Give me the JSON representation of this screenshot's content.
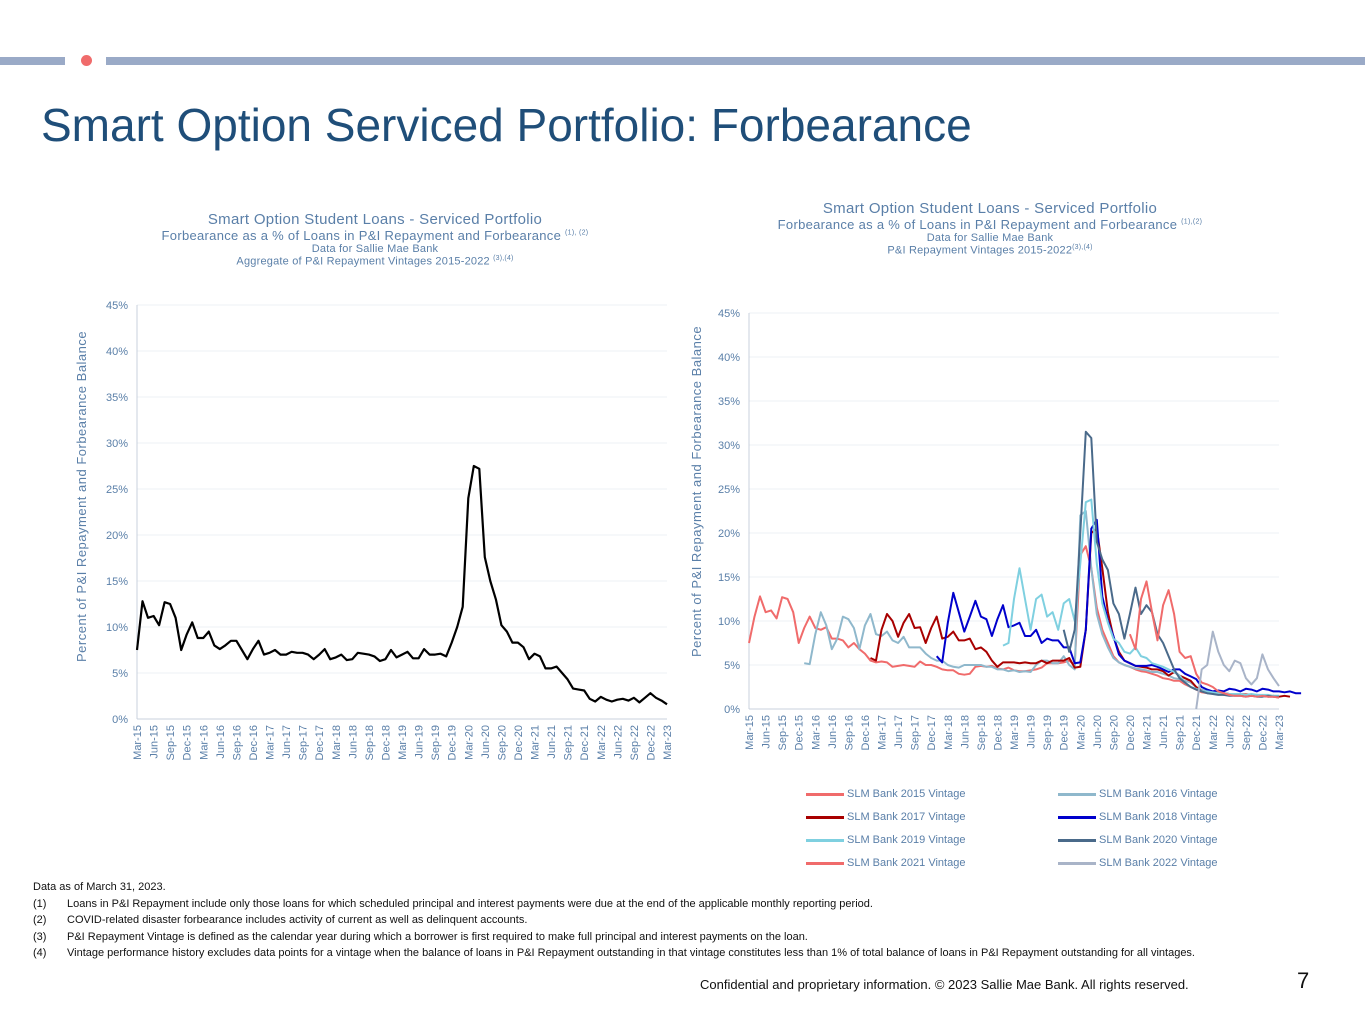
{
  "page": {
    "title": "Smart Option Serviced Portfolio: Forbearance",
    "footer": "Confidential and proprietary information. © 2023 Sallie Mae Bank. All rights reserved.",
    "page_number": "7",
    "notes_intro": "Data as of March 31, 2023.",
    "notes": [
      {
        "num": "(1)",
        "text": "Loans in P&I Repayment include only those loans for which scheduled principal and interest payments were due at the end of the applicable monthly reporting period."
      },
      {
        "num": "(2)",
        "text": "COVID-related disaster forbearance includes activity of current as well as delinquent accounts."
      },
      {
        "num": "(3)",
        "text": "P&I Repayment Vintage is defined as the calendar year during which a borrower is first required to make full principal and interest payments on the loan."
      },
      {
        "num": "(4)",
        "text": "Vintage performance history excludes data points for a vintage when the balance of loans in P&I Repayment outstanding in that vintage constitutes less than 1% of total balance of loans in P&I Repayment outstanding for all vintages."
      }
    ],
    "accent_color": "#f06b6b",
    "bar_color": "#9aaac7",
    "title_color": "#1f4e79"
  },
  "chart_data": [
    {
      "type": "line",
      "title": "Smart Option Student Loans - Serviced Portfolio",
      "subtitle": "Forbearance as a % of Loans in P&I Repayment and Forbearance",
      "subtitle_sup": "(1), (2)",
      "subtitle2": "Data for Sallie Mae Bank",
      "subtitle3": "Aggregate of P&I Repayment Vintages 2015-2022",
      "subtitle3_sup": "(3),(4)",
      "ylabel": "Percent of P&I Repayment and Forbearance  Balance",
      "xlabel": "",
      "ylim": [
        0,
        45
      ],
      "yticks": [
        "0%",
        "5%",
        "10%",
        "15%",
        "20%",
        "25%",
        "30%",
        "35%",
        "40%",
        "45%"
      ],
      "x_start": "2015-03",
      "x_end": "2023-03",
      "xtick_labels": [
        "Mar-15",
        "Jun-15",
        "Sep-15",
        "Dec-15",
        "Mar-16",
        "Jun-16",
        "Sep-16",
        "Dec-16",
        "Mar-17",
        "Jun-17",
        "Sep-17",
        "Dec-17",
        "Mar-18",
        "Jun-18",
        "Sep-18",
        "Dec-18",
        "Mar-19",
        "Jun-19",
        "Sep-19",
        "Dec-19",
        "Mar-20",
        "Jun-20",
        "Sep-20",
        "Dec-20",
        "Mar-21",
        "Jun-21",
        "Sep-21",
        "Dec-21",
        "Mar-22",
        "Jun-22",
        "Sep-22",
        "Dec-22",
        "Mar-23"
      ],
      "grid": true,
      "series": [
        {
          "color": "#000000",
          "values": [
            7.5,
            12.8,
            11.0,
            11.2,
            10.2,
            12.7,
            12.5,
            11.0,
            7.5,
            9.2,
            10.5,
            8.8,
            8.8,
            9.5,
            8.0,
            7.6,
            8.0,
            8.5,
            8.5,
            7.5,
            6.5,
            7.6,
            8.5,
            7.0,
            7.2,
            7.5,
            7.0,
            7.0,
            7.3,
            7.2,
            7.2,
            7.0,
            6.5,
            7.0,
            7.6,
            6.5,
            6.7,
            7.0,
            6.4,
            6.5,
            7.2,
            7.1,
            7.0,
            6.8,
            6.3,
            6.5,
            7.5,
            6.7,
            7.0,
            7.3,
            6.6,
            6.6,
            7.6,
            7.0,
            7.0,
            7.1,
            6.8,
            8.3,
            10.0,
            12.2,
            24.0,
            27.5,
            27.2,
            17.6,
            15.0,
            13.0,
            10.2,
            9.5,
            8.3,
            8.3,
            7.8,
            6.5,
            7.1,
            6.8,
            5.5,
            5.5,
            5.7,
            5.0,
            4.3,
            3.3,
            3.2,
            3.1,
            2.2,
            1.9,
            2.4,
            2.1,
            1.9,
            2.1,
            2.2,
            2.0,
            2.3,
            1.8,
            2.3,
            2.8,
            2.3,
            2.0,
            1.6
          ]
        }
      ]
    },
    {
      "type": "line",
      "title": "Smart Option Student Loans - Serviced Portfolio",
      "subtitle": "Forbearance as a % of Loans in P&I Repayment and Forbearance",
      "subtitle_sup": "(1),(2)",
      "subtitle2": "Data for Sallie Mae Bank",
      "subtitle3": "P&I Repayment Vintages 2015-2022",
      "subtitle3_sup": "(3),(4)",
      "ylabel": "Percent of P&I Repayment and Forbearance  Balance",
      "xlabel": "",
      "ylim": [
        0,
        45
      ],
      "yticks": [
        "0%",
        "5%",
        "10%",
        "15%",
        "20%",
        "25%",
        "30%",
        "35%",
        "40%",
        "45%"
      ],
      "x_start": "2015-03",
      "x_end": "2023-03",
      "xtick_labels": [
        "Mar-15",
        "Jun-15",
        "Sep-15",
        "Dec-15",
        "Mar-16",
        "Jun-16",
        "Sep-16",
        "Dec-16",
        "Mar-17",
        "Jun-17",
        "Sep-17",
        "Dec-17",
        "Mar-18",
        "Jun-18",
        "Sep-18",
        "Dec-18",
        "Mar-19",
        "Jun-19",
        "Sep-19",
        "Dec-19",
        "Mar-20",
        "Jun-20",
        "Sep-20",
        "Dec-20",
        "Mar-21",
        "Jun-21",
        "Sep-21",
        "Dec-21",
        "Mar-22",
        "Jun-22",
        "Sep-22",
        "Dec-22",
        "Mar-23"
      ],
      "grid": true,
      "legend_position": "bottom",
      "series": [
        {
          "name": "SLM Bank 2015 Vintage",
          "color": "#f06b6b",
          "start": "2015-03",
          "values": [
            7.5,
            10.5,
            12.8,
            11.0,
            11.2,
            10.3,
            12.7,
            12.5,
            11.0,
            7.5,
            9.2,
            10.5,
            9.2,
            9.0,
            9.3,
            8.0,
            8.0,
            7.8,
            7.0,
            7.5,
            6.8,
            6.3,
            5.5,
            5.3,
            5.4,
            5.3,
            4.8,
            4.9,
            5.0,
            4.9,
            4.8,
            5.4,
            5.0,
            5.0,
            4.8,
            4.5,
            4.4,
            4.4,
            4.0,
            3.9,
            4.0,
            4.8,
            4.9,
            4.8,
            4.9,
            4.6,
            4.5,
            4.7,
            4.4,
            4.3,
            4.3,
            4.4,
            4.5,
            4.7,
            5.2,
            5.2,
            5.2,
            5.3,
            5.5,
            5.0,
            17.5,
            18.5,
            16.0,
            11.5,
            9.0,
            7.5,
            6.0,
            5.3,
            5.0,
            4.8,
            4.5,
            4.3,
            4.2,
            4.0,
            3.8,
            3.5,
            3.4,
            3.2,
            3.2,
            2.8,
            2.5,
            2.2,
            1.9,
            1.8,
            1.9,
            1.8,
            1.6,
            1.7,
            1.6,
            1.7,
            1.7,
            1.6,
            1.5,
            1.5,
            1.5,
            1.4,
            1.3
          ]
        },
        {
          "name": "SLM Bank 2016 Vintage",
          "color": "#8fb8cc",
          "start": "2016-01",
          "values": [
            5.2,
            5.1,
            8.5,
            11.0,
            9.5,
            6.8,
            8.0,
            10.5,
            10.2,
            9.2,
            6.8,
            9.5,
            10.8,
            8.5,
            8.3,
            8.8,
            7.8,
            7.5,
            8.2,
            7.0,
            7.0,
            7.0,
            6.3,
            5.8,
            5.5,
            5.5,
            5.0,
            4.8,
            4.7,
            5.0,
            5.0,
            5.0,
            5.0,
            4.8,
            4.8,
            4.5,
            4.5,
            4.3,
            4.4,
            4.2,
            4.3,
            4.2,
            5.0,
            5.5,
            5.5,
            5.2,
            5.2,
            6.0,
            5.0,
            4.5,
            22.0,
            22.5,
            16.0,
            10.8,
            8.5,
            7.0,
            5.8,
            5.3,
            5.0,
            4.8,
            4.6,
            4.5,
            4.4,
            4.2,
            4.2,
            4.0,
            3.8,
            3.5,
            3.4,
            3.2,
            3.0,
            2.5,
            2.2,
            2.0,
            1.8,
            1.7,
            1.8,
            1.7,
            1.6,
            1.7,
            1.6,
            1.5,
            1.5,
            1.5,
            1.4,
            1.4,
            1.4
          ]
        },
        {
          "name": "SLM Bank 2017 Vintage",
          "color": "#a80000",
          "start": "2017-01",
          "values": [
            5.8,
            5.5,
            9.0,
            10.8,
            10.0,
            8.2,
            9.8,
            10.8,
            9.2,
            9.3,
            7.5,
            9.2,
            10.5,
            8.0,
            8.2,
            8.8,
            7.8,
            7.8,
            8.0,
            6.8,
            7.0,
            6.5,
            5.5,
            4.8,
            5.3,
            5.3,
            5.3,
            5.2,
            5.3,
            5.2,
            5.2,
            5.5,
            5.2,
            5.5,
            5.5,
            5.5,
            5.8,
            4.7,
            4.8,
            9.0,
            20.0,
            20.5,
            16.0,
            11.0,
            8.2,
            6.5,
            5.5,
            5.2,
            4.9,
            4.8,
            4.7,
            4.5,
            4.5,
            4.3,
            3.8,
            4.2,
            3.8,
            3.5,
            3.2,
            2.5,
            2.0,
            1.9,
            1.8,
            1.9,
            1.8,
            1.7,
            1.6,
            1.6,
            1.6,
            1.5,
            1.6,
            1.5,
            1.4,
            1.5,
            1.4,
            1.5,
            1.4
          ]
        },
        {
          "name": "SLM Bank 2018 Vintage",
          "color": "#0000cc",
          "start": "2018-01",
          "values": [
            6.0,
            5.3,
            9.8,
            13.2,
            11.0,
            8.8,
            10.5,
            12.3,
            10.5,
            10.2,
            8.3,
            10.2,
            11.8,
            9.3,
            9.5,
            9.8,
            8.3,
            8.3,
            9.0,
            7.5,
            8.0,
            7.8,
            7.8,
            7.0,
            7.0,
            5.2,
            5.3,
            9.0,
            20.5,
            21.5,
            12.8,
            10.0,
            8.3,
            6.2,
            5.5,
            5.2,
            4.9,
            4.9,
            4.9,
            5.0,
            4.8,
            4.5,
            4.2,
            4.5,
            4.5,
            4.0,
            3.7,
            3.4,
            2.5,
            2.2,
            2.0,
            2.1,
            2.0,
            2.3,
            2.2,
            2.0,
            2.3,
            2.2,
            2.0,
            2.3,
            2.2,
            2.0,
            2.0,
            1.9,
            2.0,
            1.8,
            1.8
          ]
        },
        {
          "name": "SLM Bank 2019 Vintage",
          "color": "#7fd0e0",
          "start": "2019-01",
          "values": [
            7.2,
            7.5,
            12.5,
            16.0,
            12.5,
            9.0,
            12.5,
            13.0,
            10.5,
            11.0,
            9.0,
            12.0,
            12.5,
            10.0,
            16.5,
            23.5,
            23.8,
            16.5,
            12.0,
            9.8,
            8.0,
            7.5,
            6.5,
            6.3,
            7.0,
            6.0,
            5.8,
            5.2,
            5.0,
            4.8,
            4.5,
            4.2,
            3.8,
            3.0,
            2.5,
            2.3,
            2.0,
            2.0,
            1.9,
            1.8,
            1.8,
            1.7,
            1.7,
            1.7,
            1.6,
            1.7,
            1.6,
            1.6,
            1.6,
            1.5,
            1.5
          ]
        },
        {
          "name": "SLM Bank 2020 Vintage",
          "color": "#4a6a8a",
          "start": "2019-12",
          "values": [
            9.0,
            6.5,
            9.0,
            20.0,
            31.5,
            30.8,
            19.0,
            17.0,
            15.8,
            12.0,
            10.8,
            8.0,
            10.8,
            13.8,
            10.8,
            11.8,
            11.0,
            8.5,
            7.5,
            6.0,
            4.5,
            3.5,
            3.0,
            2.5,
            2.2,
            2.0,
            1.8,
            1.7,
            1.6,
            1.6,
            1.5,
            1.5,
            1.5,
            1.4,
            1.5,
            1.4,
            1.4,
            1.5,
            1.4,
            1.4
          ]
        },
        {
          "name": "SLM Bank 2021 Vintage",
          "color": "#f06b6b",
          "start": "2020-12",
          "values": [
            8.5,
            6.8,
            12.5,
            14.5,
            11.0,
            7.8,
            11.8,
            13.5,
            10.8,
            6.5,
            5.8,
            6.0,
            4.0,
            3.0,
            2.8,
            2.5,
            2.0,
            1.8,
            1.6,
            1.5,
            1.5,
            1.4,
            1.5,
            1.4,
            1.5,
            1.4,
            1.4,
            1.3
          ]
        },
        {
          "name": "SLM Bank 2022 Vintage",
          "color": "#a9b4c8",
          "start": "2021-12",
          "values": [
            0.0,
            4.5,
            5.0,
            8.8,
            6.5,
            5.0,
            4.3,
            5.5,
            5.2,
            3.5,
            2.8,
            3.5,
            6.2,
            4.5,
            3.5,
            2.6
          ]
        }
      ]
    }
  ]
}
